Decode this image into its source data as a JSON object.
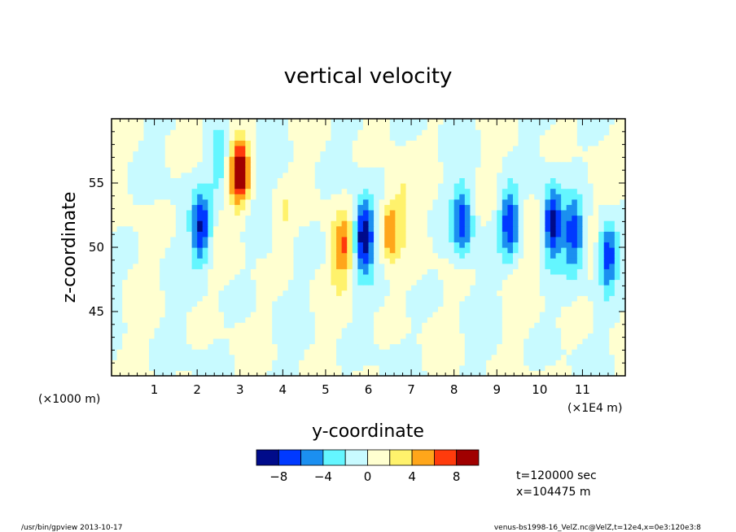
{
  "chart_data": {
    "type": "heatmap",
    "title": "vertical velocity",
    "xlabel": "y-coordinate",
    "ylabel": "z-coordinate",
    "x_unit": "(×1E4 m)",
    "y_unit": "(×1000 m)",
    "xlim": [
      0,
      12
    ],
    "ylim": [
      40,
      60
    ],
    "x_ticks": [
      1,
      2,
      3,
      4,
      5,
      6,
      7,
      8,
      9,
      10,
      11
    ],
    "y_ticks": [
      45,
      50,
      55
    ],
    "colorbar": {
      "boundaries": [
        -10,
        -8,
        -6,
        -4,
        -2,
        0,
        2,
        4,
        6,
        8,
        10
      ],
      "tick_values": [
        -8,
        -4,
        0,
        4,
        8
      ],
      "tick_labels": [
        "−8",
        "−4",
        "0",
        "4",
        "8"
      ],
      "colors": [
        "#000b8a",
        "#0039ff",
        "#1b8ff0",
        "#64f6ff",
        "#c8faff",
        "#ffffd0",
        "#fff26c",
        "#ffa61a",
        "#ff3b0c",
        "#a00000"
      ]
    },
    "features": [
      {
        "y": 2.1,
        "z": 51.5,
        "w": -8
      },
      {
        "y": 2.5,
        "z": 56.5,
        "w": -4
      },
      {
        "y": 3.0,
        "z": 56.0,
        "w": 10
      },
      {
        "y": 4.0,
        "z": 52.0,
        "w": 2
      },
      {
        "y": 5.4,
        "z": 50.0,
        "w": 6
      },
      {
        "y": 5.9,
        "z": 51.0,
        "w": -10
      },
      {
        "y": 6.5,
        "z": 51.5,
        "w": 6
      },
      {
        "y": 6.8,
        "z": 54.0,
        "w": 2
      },
      {
        "y": 8.2,
        "z": 52.0,
        "w": -7
      },
      {
        "y": 9.3,
        "z": 52.0,
        "w": -8
      },
      {
        "y": 10.3,
        "z": 52.0,
        "w": -9
      },
      {
        "y": 10.8,
        "z": 51.0,
        "w": -7
      },
      {
        "y": 11.6,
        "z": 49.5,
        "w": -8
      }
    ]
  },
  "info": {
    "time": "t=120000 sec",
    "position": "x=104475 m"
  },
  "footer": {
    "left": "/usr/bin/gpview   2013-10-17",
    "right": "venus-bs1998-16_VelZ.nc@VelZ,t=12e4,x=0e3:120e3:8"
  }
}
